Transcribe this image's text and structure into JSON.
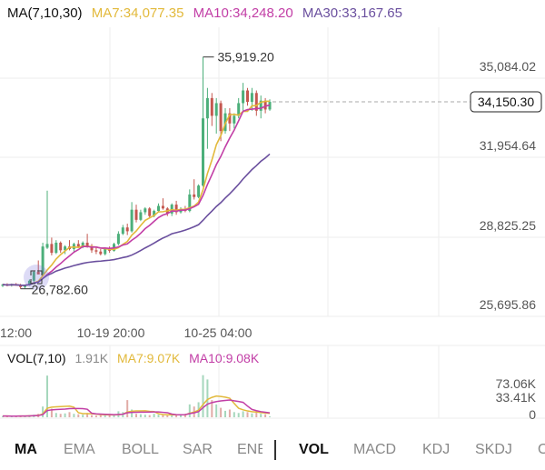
{
  "colors": {
    "up": "#4caf7a",
    "down": "#c4574f",
    "ma7": "#e2b93b",
    "ma10": "#c23ea6",
    "ma30": "#6a4f9e",
    "grid": "#eeeeee",
    "text": "#333333",
    "axis": "#555555"
  },
  "main_legend": {
    "title": "MA(7,10,30)",
    "ma7": "MA7:34,077.35",
    "ma10": "MA10:34,248.20",
    "ma30": "MA30:33,167.65"
  },
  "vol_legend": {
    "title": "VOL(7,10)",
    "current": "1.91K",
    "ma7": "MA7:9.07K",
    "ma10": "MA10:9.08K"
  },
  "tabs": {
    "main": [
      "MA",
      "EMA",
      "BOLL",
      "SAR",
      "ENE"
    ],
    "sub": [
      "VOL",
      "MACD",
      "KDJ",
      "SKDJ",
      "O"
    ],
    "active_main": "MA",
    "active_sub": "VOL"
  },
  "chart_data": {
    "type": "candlestick",
    "price_axis_labels": [
      "35,084.02",
      "31,954.64",
      "28,825.25",
      "25,695.86"
    ],
    "price_axis_values": [
      35084.02,
      31954.64,
      28825.25,
      25695.86
    ],
    "x_tick_labels": [
      "12:00",
      "10-19 20:00",
      "10-25 04:00"
    ],
    "current_price": 34150.3,
    "current_price_label": "34,150.30",
    "high_label": "35,919.20",
    "low_label": "26,782.60",
    "high": 35919.2,
    "low": 26782.6,
    "candles": [
      [
        26900,
        26980,
        26850,
        26950
      ],
      [
        26950,
        27000,
        26880,
        26920
      ],
      [
        26920,
        26990,
        26870,
        26960
      ],
      [
        26960,
        27010,
        26900,
        26930
      ],
      [
        26930,
        26980,
        26782.6,
        26850
      ],
      [
        26850,
        26950,
        26800,
        26920
      ],
      [
        26920,
        27150,
        26900,
        27100
      ],
      [
        27100,
        27500,
        27050,
        27450
      ],
      [
        27450,
        27900,
        27400,
        27350
      ],
      [
        27350,
        28600,
        27300,
        28450
      ],
      [
        28400,
        30650,
        28350,
        28550
      ],
      [
        28550,
        28800,
        28100,
        28200
      ],
      [
        28200,
        28700,
        28150,
        28600
      ],
      [
        28600,
        28650,
        28200,
        28300
      ],
      [
        28300,
        28500,
        28150,
        28450
      ],
      [
        28450,
        28700,
        28300,
        28350
      ],
      [
        28350,
        28600,
        28250,
        28550
      ],
      [
        28550,
        28700,
        28400,
        28450
      ],
      [
        28450,
        28650,
        28380,
        28600
      ],
      [
        28600,
        28950,
        28400,
        28450
      ],
      [
        28450,
        28550,
        28200,
        28300
      ],
      [
        28300,
        28450,
        28150,
        28250
      ],
      [
        28250,
        28350,
        28100,
        28150
      ],
      [
        28150,
        28400,
        28100,
        28350
      ],
      [
        28350,
        28450,
        28200,
        28280
      ],
      [
        28280,
        28600,
        28250,
        28550
      ],
      [
        28550,
        29050,
        28500,
        28950
      ],
      [
        28950,
        29300,
        28900,
        29200
      ],
      [
        29200,
        29350,
        28900,
        29050
      ],
      [
        29050,
        30200,
        29000,
        29900
      ],
      [
        29900,
        30100,
        29400,
        29500
      ],
      [
        29500,
        29900,
        29450,
        29800
      ],
      [
        29800,
        30000,
        29700,
        29950
      ],
      [
        29950,
        30000,
        29550,
        29650
      ],
      [
        29650,
        29900,
        29600,
        29850
      ],
      [
        29850,
        30150,
        29800,
        30050
      ],
      [
        30050,
        30350,
        29900,
        29950
      ],
      [
        29950,
        30000,
        29650,
        29750
      ],
      [
        29750,
        30150,
        29650,
        30100
      ],
      [
        30100,
        30250,
        29700,
        29800
      ],
      [
        29800,
        30000,
        29750,
        29900
      ],
      [
        29900,
        30050,
        29800,
        29850
      ],
      [
        29850,
        30700,
        29800,
        30500
      ],
      [
        30500,
        31100,
        30300,
        30400
      ],
      [
        30400,
        30900,
        30350,
        30850
      ],
      [
        30850,
        35919.2,
        30800,
        33500
      ],
      [
        33500,
        34700,
        32300,
        34300
      ],
      [
        34300,
        34500,
        33200,
        33600
      ],
      [
        33600,
        34300,
        32900,
        34100
      ],
      [
        34100,
        34200,
        32600,
        33000
      ],
      [
        33000,
        33900,
        32900,
        33700
      ],
      [
        33700,
        33900,
        33000,
        33300
      ],
      [
        33300,
        33700,
        33100,
        33600
      ],
      [
        33600,
        34300,
        33500,
        34100
      ],
      [
        34100,
        34900,
        33800,
        34600
      ],
      [
        34600,
        34700,
        34000,
        34150
      ],
      [
        34150,
        34700,
        33800,
        34500
      ],
      [
        34500,
        34600,
        33600,
        33800
      ],
      [
        33800,
        34400,
        33500,
        34200
      ],
      [
        34200,
        34300,
        33700,
        33850
      ],
      [
        33850,
        34250,
        33800,
        34150.3
      ]
    ],
    "volume_axis_labels": [
      "73.06K",
      "33.41K",
      "0"
    ],
    "volume_max_k": 110,
    "volumes_k": [
      3,
      3,
      2,
      3,
      4,
      3,
      5,
      6,
      8,
      25,
      97,
      20,
      10,
      8,
      9,
      12,
      8,
      7,
      6,
      10,
      5,
      4,
      5,
      4,
      6,
      5,
      14,
      12,
      40,
      18,
      8,
      7,
      6,
      5,
      8,
      6,
      5,
      4,
      7,
      6,
      5,
      8,
      30,
      25,
      35,
      98,
      88,
      40,
      30,
      22,
      15,
      18,
      12,
      10,
      14,
      12,
      9,
      11,
      8,
      7,
      1.91
    ],
    "ma_periods": [
      7,
      10,
      30
    ],
    "vol_ma_periods": [
      7,
      10
    ]
  }
}
